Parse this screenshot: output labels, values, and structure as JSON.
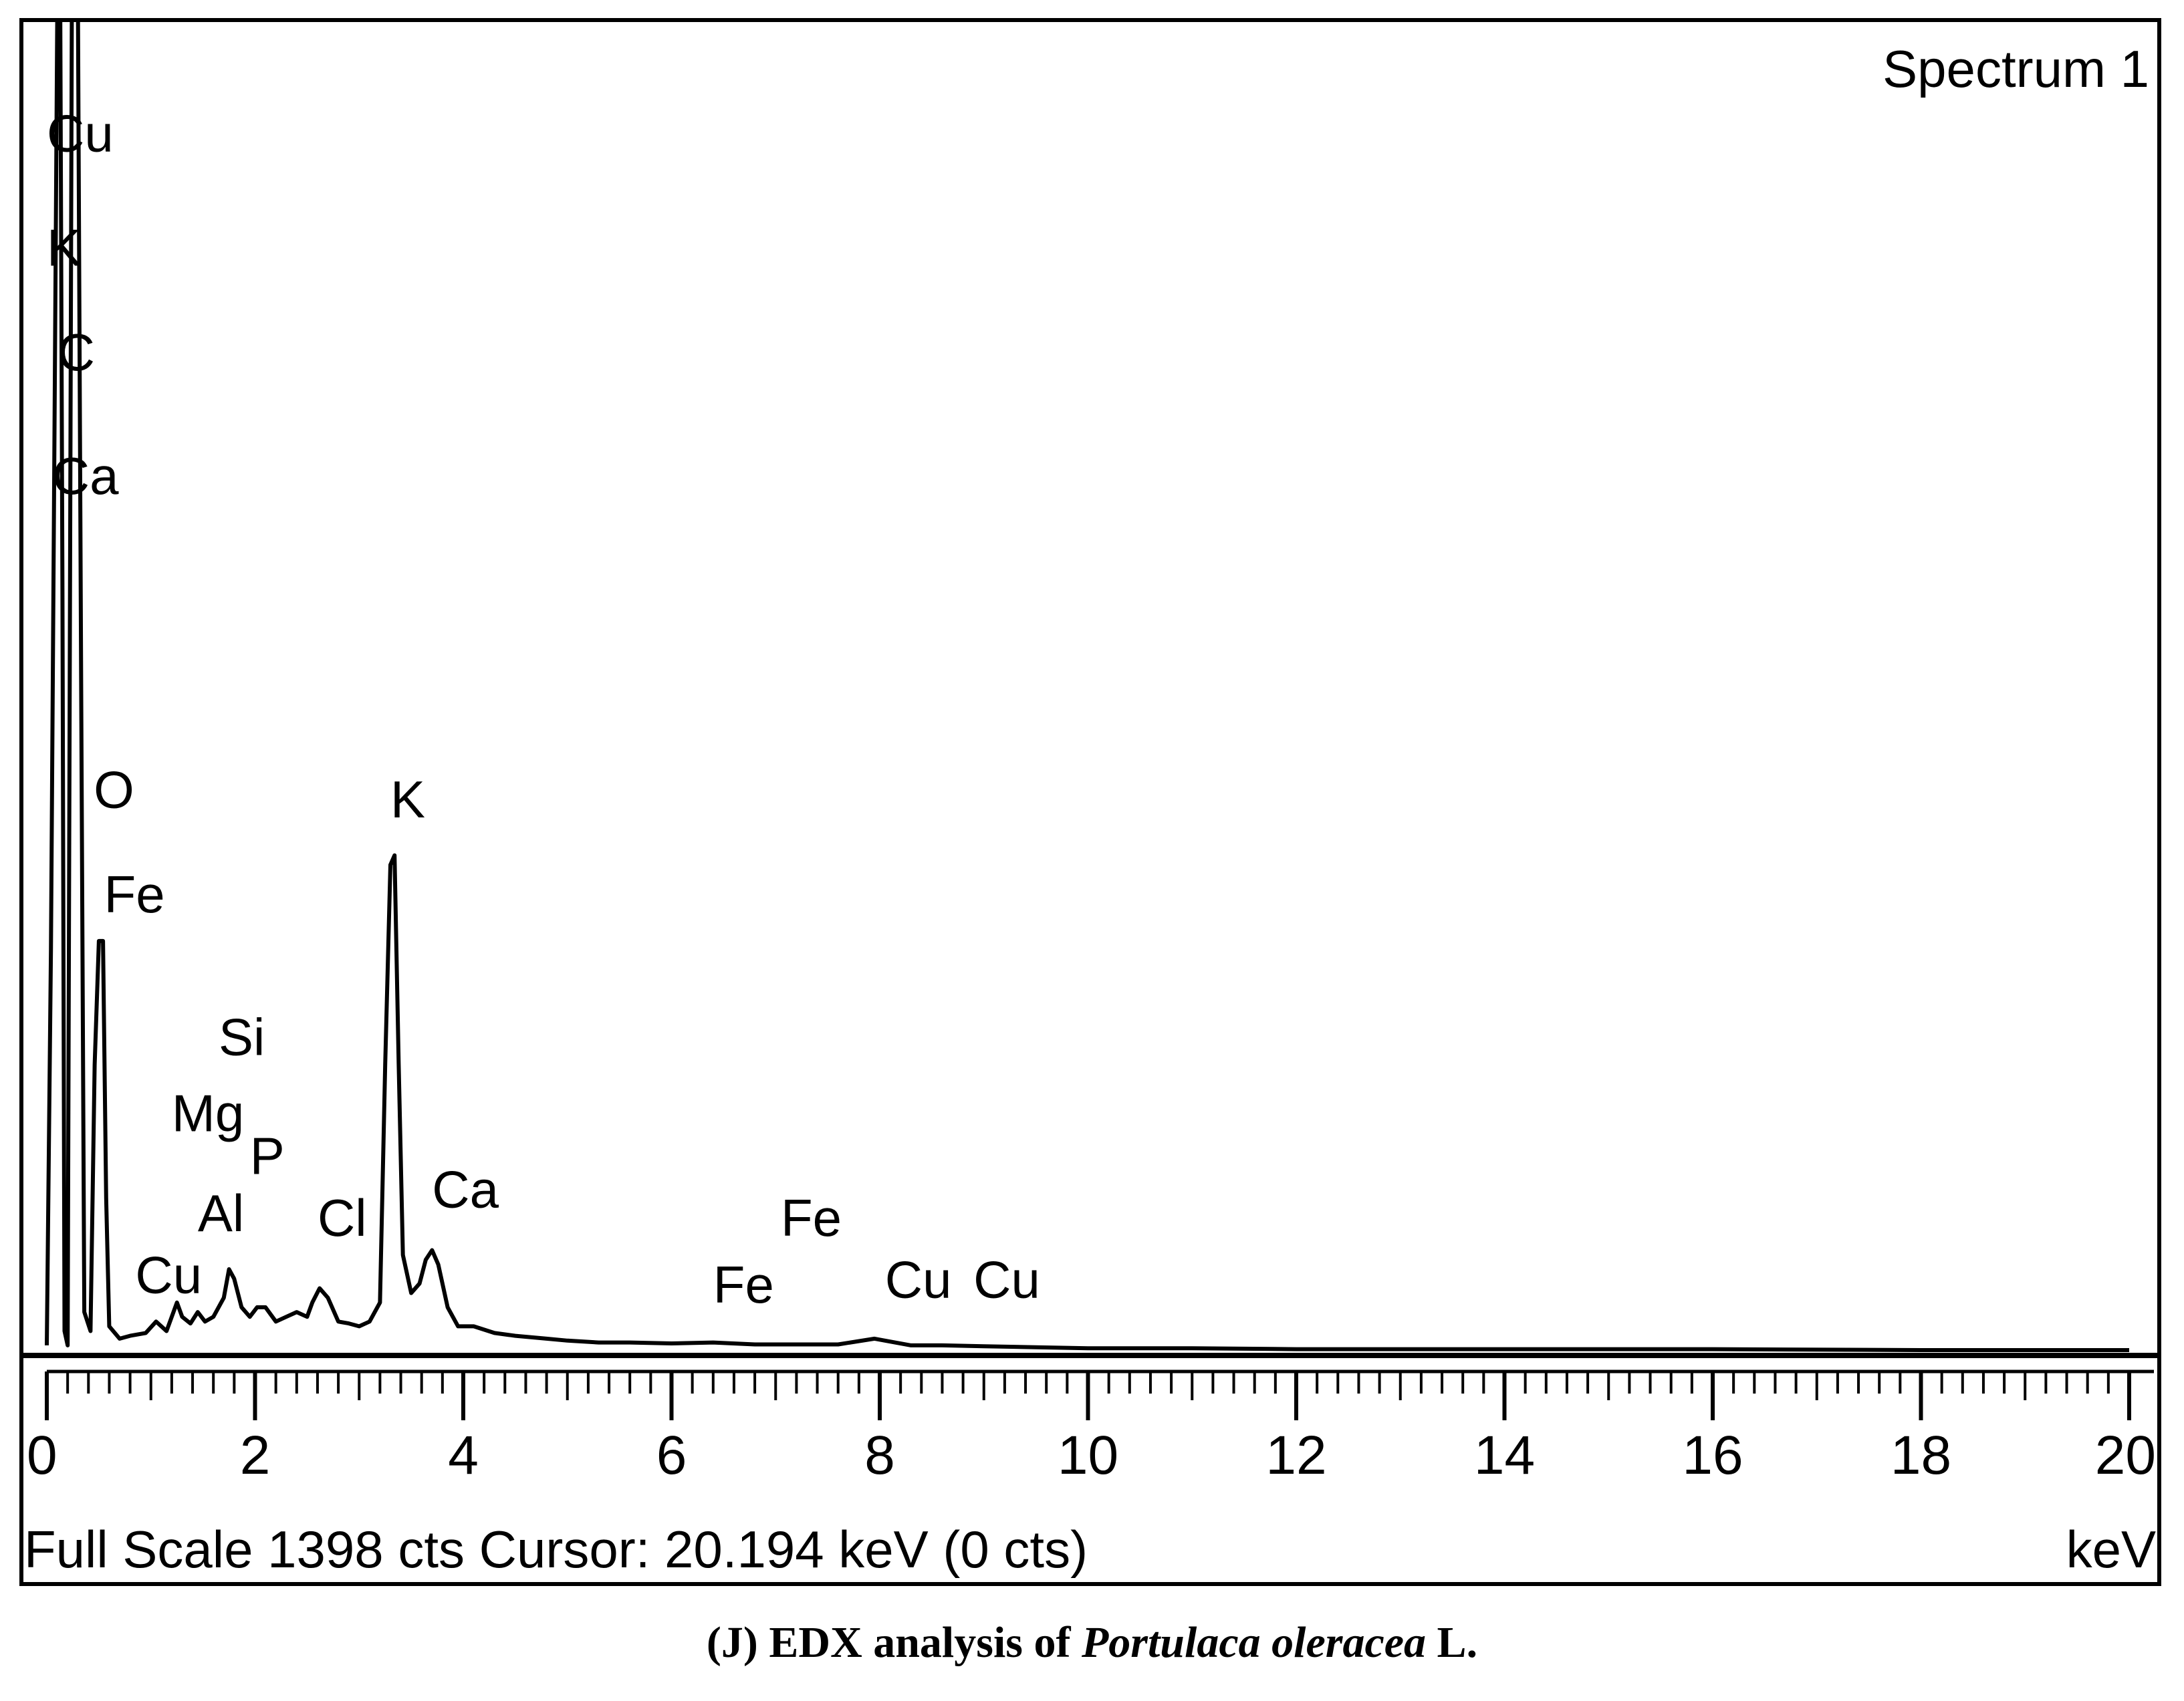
{
  "chart_data": {
    "type": "line",
    "title": "Spectrum 1",
    "xlabel": "keV",
    "xlim": [
      0,
      20
    ],
    "ylim": [
      0,
      1398
    ],
    "x_ticks": [
      0,
      2,
      4,
      6,
      8,
      10,
      12,
      14,
      16,
      18,
      20
    ],
    "x_tick_labels": [
      "0",
      "2",
      "4",
      "6",
      "8",
      "10",
      "12",
      "14",
      "16",
      "18",
      "20"
    ],
    "minor_tick_step": 0.2,
    "grid": false,
    "series": [
      {
        "color": "#000000",
        "points": [
          [
            0.0,
            5
          ],
          [
            0.04,
            420
          ],
          [
            0.07,
            900
          ],
          [
            0.1,
            1398
          ],
          [
            0.13,
            1398
          ],
          [
            0.15,
            800
          ],
          [
            0.17,
            20
          ],
          [
            0.2,
            5
          ],
          [
            0.24,
            1398
          ],
          [
            0.26,
            1398
          ],
          [
            0.3,
            1398
          ],
          [
            0.33,
            700
          ],
          [
            0.36,
            40
          ],
          [
            0.42,
            20
          ],
          [
            0.46,
            300
          ],
          [
            0.5,
            430
          ],
          [
            0.54,
            430
          ],
          [
            0.57,
            160
          ],
          [
            0.6,
            25
          ],
          [
            0.7,
            12
          ],
          [
            0.8,
            15
          ],
          [
            0.95,
            18
          ],
          [
            1.05,
            30
          ],
          [
            1.15,
            20
          ],
          [
            1.25,
            50
          ],
          [
            1.3,
            35
          ],
          [
            1.38,
            28
          ],
          [
            1.45,
            40
          ],
          [
            1.52,
            30
          ],
          [
            1.6,
            35
          ],
          [
            1.7,
            55
          ],
          [
            1.75,
            85
          ],
          [
            1.8,
            75
          ],
          [
            1.87,
            45
          ],
          [
            1.95,
            35
          ],
          [
            2.02,
            45
          ],
          [
            2.1,
            45
          ],
          [
            2.2,
            30
          ],
          [
            2.3,
            35
          ],
          [
            2.4,
            40
          ],
          [
            2.5,
            35
          ],
          [
            2.55,
            50
          ],
          [
            2.62,
            65
          ],
          [
            2.7,
            55
          ],
          [
            2.8,
            30
          ],
          [
            2.9,
            28
          ],
          [
            3.0,
            25
          ],
          [
            3.1,
            30
          ],
          [
            3.2,
            50
          ],
          [
            3.25,
            300
          ],
          [
            3.3,
            510
          ],
          [
            3.34,
            520
          ],
          [
            3.38,
            300
          ],
          [
            3.42,
            100
          ],
          [
            3.5,
            60
          ],
          [
            3.58,
            70
          ],
          [
            3.64,
            95
          ],
          [
            3.7,
            105
          ],
          [
            3.76,
            90
          ],
          [
            3.85,
            45
          ],
          [
            3.95,
            25
          ],
          [
            4.1,
            25
          ],
          [
            4.3,
            18
          ],
          [
            4.5,
            15
          ],
          [
            4.8,
            12
          ],
          [
            5.0,
            10
          ],
          [
            5.3,
            8
          ],
          [
            5.6,
            8
          ],
          [
            6.0,
            7
          ],
          [
            6.4,
            8
          ],
          [
            6.8,
            6
          ],
          [
            7.2,
            6
          ],
          [
            7.6,
            6
          ],
          [
            7.95,
            12
          ],
          [
            8.05,
            10
          ],
          [
            8.3,
            5
          ],
          [
            8.6,
            5
          ],
          [
            9.0,
            4
          ],
          [
            9.5,
            3
          ],
          [
            10.0,
            2
          ],
          [
            11.0,
            2
          ],
          [
            12.0,
            1
          ],
          [
            14.0,
            1
          ],
          [
            16.0,
            1
          ],
          [
            18.0,
            0
          ],
          [
            20.0,
            0
          ]
        ]
      }
    ],
    "annotations": [
      {
        "text": "Cu",
        "x": 0.0,
        "y": 1260
      },
      {
        "text": "K",
        "x": 0.0,
        "y": 1140
      },
      {
        "text": "C",
        "x": 0.1,
        "y": 1030
      },
      {
        "text": "Ca",
        "x": 0.05,
        "y": 900
      },
      {
        "text": "O",
        "x": 0.45,
        "y": 570
      },
      {
        "text": "Fe",
        "x": 0.55,
        "y": 460
      },
      {
        "text": "Si",
        "x": 1.65,
        "y": 310
      },
      {
        "text": "Mg",
        "x": 1.2,
        "y": 230
      },
      {
        "text": "P",
        "x": 1.95,
        "y": 185
      },
      {
        "text": "Al",
        "x": 1.45,
        "y": 125
      },
      {
        "text": "Cl",
        "x": 2.6,
        "y": 120
      },
      {
        "text": "Cu",
        "x": 0.85,
        "y": 60
      },
      {
        "text": "K",
        "x": 3.3,
        "y": 560
      },
      {
        "text": "Ca",
        "x": 3.7,
        "y": 150
      },
      {
        "text": "Fe",
        "x": 6.4,
        "y": 50
      },
      {
        "text": "Fe",
        "x": 7.05,
        "y": 120
      },
      {
        "text": "Cu",
        "x": 8.05,
        "y": 55
      },
      {
        "text": "Cu",
        "x": 8.9,
        "y": 55
      }
    ],
    "status_left": "Full Scale 1398 cts  Cursor: 20.194 keV (0 cts)",
    "status_right": "keV"
  },
  "caption": {
    "prefix": "(J) EDX analysis of ",
    "species": "Portulaca oleracea",
    "suffix": " L."
  }
}
